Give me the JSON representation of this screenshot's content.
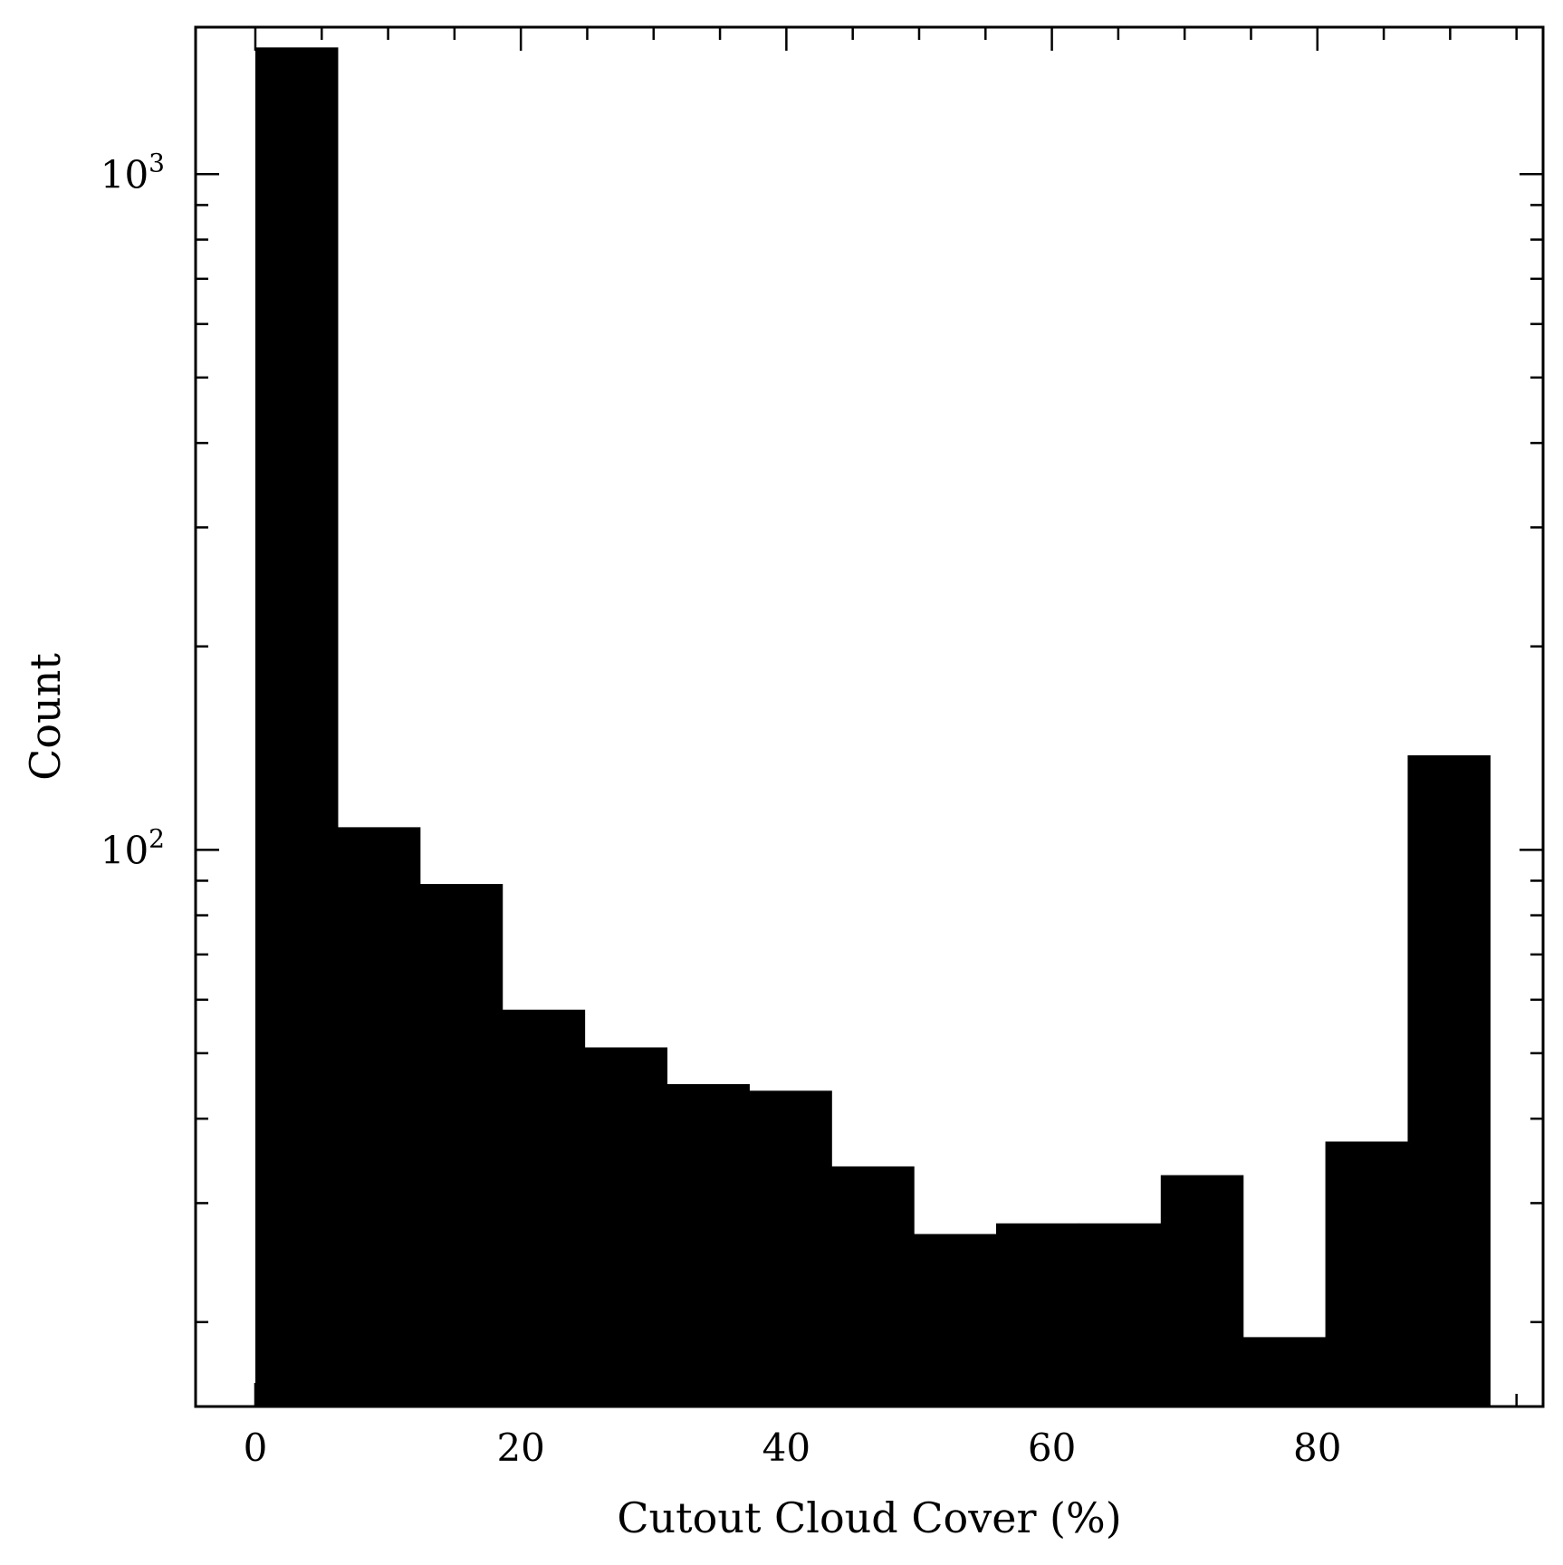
{
  "chart_data": {
    "type": "bar",
    "subtype": "histogram",
    "xlabel": "Cutout Cloud Cover (%)",
    "ylabel": "Count",
    "y_scale": "log",
    "xlim": [
      -4.5,
      97
    ],
    "ylim": [
      15,
      1650
    ],
    "x_ticks": [
      0,
      20,
      40,
      60,
      80
    ],
    "y_ticks": [
      {
        "value": 100,
        "base": "10",
        "exp": "2"
      },
      {
        "value": 1000,
        "base": "10",
        "exp": "3"
      }
    ],
    "bin_edges": [
      0,
      6.2,
      12.4,
      18.6,
      24.8,
      31,
      37.2,
      43.4,
      49.6,
      55.8,
      62,
      68.2,
      74.4,
      80.6,
      86.8,
      93
    ],
    "counts": [
      1540,
      108,
      89,
      58,
      51,
      45,
      44,
      34,
      27,
      28,
      28,
      33,
      19,
      37,
      138
    ],
    "bar_color": "#000000",
    "grid": false,
    "legend": "none"
  }
}
